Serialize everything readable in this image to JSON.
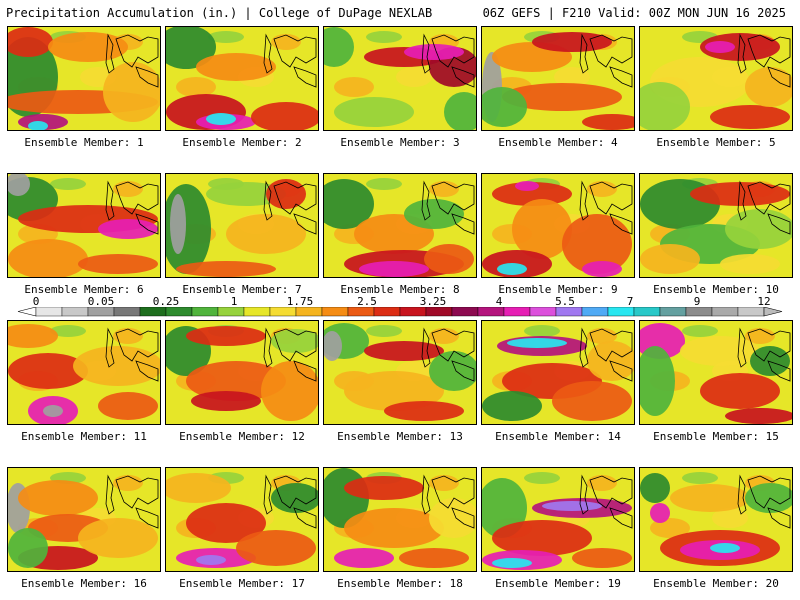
{
  "header": {
    "left": "Precipitation Accumulation (in.) | College of DuPage NEXLAB",
    "right": "06Z GEFS | F210 Valid: 00Z MON JUN 16 2025"
  },
  "members": [
    {
      "label": "Ensemble Member: 1"
    },
    {
      "label": "Ensemble Member: 2"
    },
    {
      "label": "Ensemble Member: 3"
    },
    {
      "label": "Ensemble Member: 4"
    },
    {
      "label": "Ensemble Member: 5"
    },
    {
      "label": "Ensemble Member: 6"
    },
    {
      "label": "Ensemble Member: 7"
    },
    {
      "label": "Ensemble Member: 8"
    },
    {
      "label": "Ensemble Member: 9"
    },
    {
      "label": "Ensemble Member: 10"
    },
    {
      "label": "Ensemble Member: 11"
    },
    {
      "label": "Ensemble Member: 12"
    },
    {
      "label": "Ensemble Member: 13"
    },
    {
      "label": "Ensemble Member: 14"
    },
    {
      "label": "Ensemble Member: 15"
    },
    {
      "label": "Ensemble Member: 16"
    },
    {
      "label": "Ensemble Member: 17"
    },
    {
      "label": "Ensemble Member: 18"
    },
    {
      "label": "Ensemble Member: 19"
    },
    {
      "label": "Ensemble Member: 20"
    }
  ],
  "colorbar": {
    "tick_labels": [
      "0",
      "0.05",
      "0.25",
      "1",
      "1.75",
      "2.5",
      "3.25",
      "4",
      "5.5",
      "7",
      "9",
      "12"
    ],
    "colors": [
      "#e6e6e6",
      "#c8c8c8",
      "#a0a0a0",
      "#787878",
      "#1e6e1e",
      "#2e8b2e",
      "#50b43c",
      "#96d23c",
      "#e6e628",
      "#f5dc32",
      "#f5b41e",
      "#f58c14",
      "#eb5a14",
      "#dc2d14",
      "#c8141e",
      "#a00a28",
      "#8c0a50",
      "#b4147d",
      "#e61eb4",
      "#dc50dc",
      "#a078f0",
      "#50aaf5",
      "#28e6f0",
      "#28c8c8",
      "#64a0a0",
      "#8c8c8c",
      "#aaaaaa",
      "#c8c8c8"
    ]
  }
}
